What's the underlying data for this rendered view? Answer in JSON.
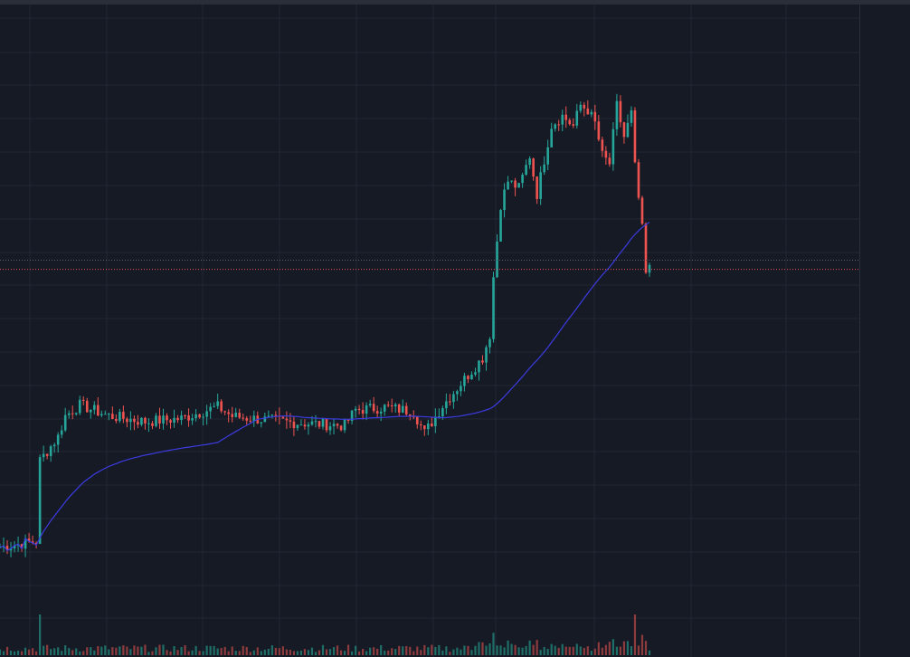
{
  "chart_data": {
    "type": "candlestick",
    "title": "",
    "xlabel": "",
    "ylabel": "",
    "ylim": [
      0,
      100
    ],
    "x_count": 180,
    "grid": true,
    "moving_average": {
      "name": "",
      "color": "#3b3be0"
    },
    "price_lines": [
      62.6,
      60.9
    ],
    "waypoints": [
      [
        0,
        9.3
      ],
      [
        10,
        10.4
      ],
      [
        11,
        25.4
      ],
      [
        16,
        29.8
      ],
      [
        18,
        33.7
      ],
      [
        22,
        35.7
      ],
      [
        30,
        33.7
      ],
      [
        40,
        32.6
      ],
      [
        50,
        33.2
      ],
      [
        60,
        35.4
      ],
      [
        64,
        33.6
      ],
      [
        80,
        32.5
      ],
      [
        95,
        31.9
      ],
      [
        98,
        34.8
      ],
      [
        106,
        35.3
      ],
      [
        114,
        34.5
      ],
      [
        117,
        30.5
      ],
      [
        122,
        35.6
      ],
      [
        128,
        40.5
      ],
      [
        133,
        44.5
      ],
      [
        135,
        48.8
      ],
      [
        136,
        59.5
      ],
      [
        138,
        73.0
      ],
      [
        140,
        77.3
      ],
      [
        143,
        76.0
      ],
      [
        146,
        82.0
      ],
      [
        148,
        74.9
      ],
      [
        152,
        87.7
      ],
      [
        155,
        89.4
      ],
      [
        158,
        87.5
      ],
      [
        160,
        91.4
      ],
      [
        162,
        90.5
      ],
      [
        164,
        88.0
      ],
      [
        166,
        82.0
      ],
      [
        168,
        80.5
      ],
      [
        170,
        91.3
      ],
      [
        172,
        85.5
      ],
      [
        174,
        89.8
      ],
      [
        175,
        79.9
      ],
      [
        177,
        68.3
      ],
      [
        178,
        60.0
      ],
      [
        179,
        61.0
      ]
    ],
    "volume_peaks": [
      [
        11,
        1.0
      ],
      [
        136,
        0.55
      ],
      [
        175,
        1.0
      ],
      [
        177,
        0.5
      ],
      [
        178,
        0.35
      ]
    ],
    "colors": {
      "background": "#161a25",
      "grid": "#232734",
      "up": "#26a69a",
      "down": "#ef5350",
      "price_line_1": "#5d606b",
      "price_line_2": "#ef5350",
      "volume_up": "#1f6f68",
      "volume_down": "#8e3b3e"
    }
  }
}
